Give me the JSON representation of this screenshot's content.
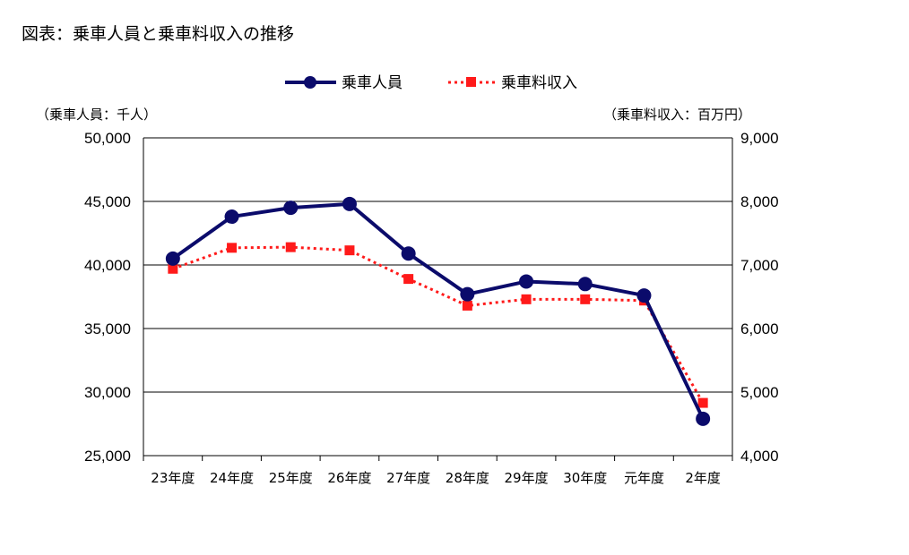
{
  "title": "図表：乗車人員と乗車料収入の推移",
  "chart_data": {
    "type": "line",
    "categories": [
      "23年度",
      "24年度",
      "25年度",
      "26年度",
      "27年度",
      "28年度",
      "29年度",
      "30年度",
      "元年度",
      "2年度"
    ],
    "series": [
      {
        "name": "乗車人員",
        "axis": "left",
        "color": "#0b0b6b",
        "style": "solid-circle",
        "values": [
          40500,
          43800,
          44500,
          44800,
          40900,
          37700,
          38700,
          38500,
          37600,
          27900
        ]
      },
      {
        "name": "乗車料収入",
        "axis": "right",
        "color": "#ff1a1a",
        "style": "dotted-square",
        "values": [
          6940,
          7270,
          7280,
          7230,
          6780,
          6360,
          6460,
          6460,
          6440,
          4830
        ]
      }
    ],
    "y_left": {
      "label": "（乗車人員：千人）",
      "lim": [
        25000,
        50000
      ],
      "ticks": [
        "25,000",
        "30,000",
        "35,000",
        "40,000",
        "45,000",
        "50,000"
      ]
    },
    "y_right": {
      "label": "（乗車料収入：百万円）",
      "lim": [
        4000,
        9000
      ],
      "ticks": [
        "4,000",
        "5,000",
        "6,000",
        "7,000",
        "8,000",
        "9,000"
      ]
    },
    "grid": true,
    "legend_position": "top-center"
  }
}
